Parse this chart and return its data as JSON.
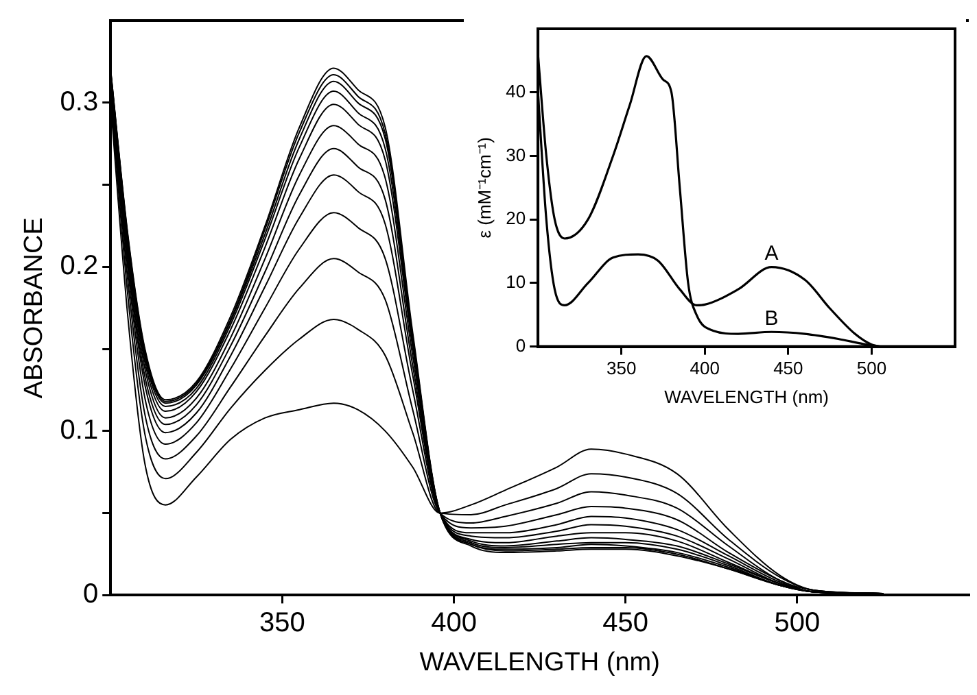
{
  "chart_data": [
    {
      "type": "line",
      "xlabel": "WAVELENGTH (nm)",
      "ylabel": "ABSORBANCE",
      "xlim": [
        300,
        550
      ],
      "xticks": [
        350,
        400,
        450,
        500
      ],
      "ylim": [
        0,
        0.35
      ],
      "yticks": [
        0,
        {
          "value": 0.05,
          "label": null
        },
        0.1,
        {
          "value": 0.15,
          "label": null
        },
        0.2,
        {
          "value": 0.25,
          "label": null
        },
        0.3
      ],
      "x": [
        300,
        305,
        310,
        316,
        325,
        335,
        345,
        355,
        365,
        372,
        380,
        388,
        396,
        405,
        415,
        430,
        440,
        450,
        465,
        480,
        495,
        505,
        525
      ],
      "series": [
        {
          "color": "#000000",
          "values": [
            0.3,
            0.17,
            0.08,
            0.055,
            0.072,
            0.095,
            0.108,
            0.113,
            0.117,
            0.113,
            0.1,
            0.078,
            0.05,
            0.055,
            0.064,
            0.078,
            0.089,
            0.086,
            0.074,
            0.04,
            0.012,
            0.003,
            0.001
          ]
        },
        {
          "color": "#000000",
          "values": [
            0.305,
            0.183,
            0.098,
            0.071,
            0.087,
            0.114,
            0.137,
            0.156,
            0.168,
            0.162,
            0.146,
            0.099,
            0.05,
            0.049,
            0.055,
            0.065,
            0.074,
            0.072,
            0.062,
            0.034,
            0.011,
            0.003,
            0.001
          ]
        },
        {
          "color": "#000000",
          "values": [
            0.309,
            0.192,
            0.11,
            0.083,
            0.097,
            0.127,
            0.158,
            0.187,
            0.205,
            0.197,
            0.18,
            0.113,
            0.05,
            0.044,
            0.048,
            0.056,
            0.063,
            0.061,
            0.053,
            0.03,
            0.009,
            0.003,
            0.001
          ]
        },
        {
          "color": "#000000",
          "values": [
            0.311,
            0.199,
            0.12,
            0.092,
            0.105,
            0.138,
            0.175,
            0.211,
            0.233,
            0.224,
            0.205,
            0.125,
            0.05,
            0.041,
            0.042,
            0.049,
            0.054,
            0.053,
            0.046,
            0.026,
            0.009,
            0.002,
            0.001
          ]
        },
        {
          "color": "#000000",
          "values": [
            0.314,
            0.204,
            0.128,
            0.099,
            0.111,
            0.146,
            0.188,
            0.23,
            0.256,
            0.246,
            0.226,
            0.134,
            0.05,
            0.038,
            0.038,
            0.043,
            0.048,
            0.047,
            0.04,
            0.024,
            0.008,
            0.002,
            0.001
          ]
        },
        {
          "color": "#000000",
          "values": [
            0.315,
            0.208,
            0.133,
            0.104,
            0.116,
            0.152,
            0.197,
            0.244,
            0.272,
            0.261,
            0.241,
            0.14,
            0.05,
            0.036,
            0.035,
            0.039,
            0.043,
            0.042,
            0.036,
            0.022,
            0.007,
            0.002,
            0.001
          ]
        },
        {
          "color": "#000000",
          "values": [
            0.317,
            0.212,
            0.138,
            0.108,
            0.12,
            0.157,
            0.205,
            0.256,
            0.286,
            0.275,
            0.254,
            0.146,
            0.05,
            0.034,
            0.032,
            0.036,
            0.038,
            0.038,
            0.033,
            0.02,
            0.007,
            0.002,
            0.001
          ]
        },
        {
          "color": "#000000",
          "values": [
            0.318,
            0.215,
            0.142,
            0.112,
            0.124,
            0.162,
            0.212,
            0.266,
            0.299,
            0.287,
            0.265,
            0.151,
            0.05,
            0.033,
            0.03,
            0.033,
            0.035,
            0.034,
            0.03,
            0.019,
            0.007,
            0.002,
            0.001
          ]
        },
        {
          "color": "#000000",
          "values": [
            0.319,
            0.217,
            0.145,
            0.115,
            0.126,
            0.165,
            0.217,
            0.273,
            0.307,
            0.294,
            0.272,
            0.154,
            0.05,
            0.032,
            0.029,
            0.031,
            0.032,
            0.032,
            0.028,
            0.018,
            0.006,
            0.002,
            0.001
          ]
        },
        {
          "color": "#000000",
          "values": [
            0.319,
            0.218,
            0.147,
            0.117,
            0.128,
            0.167,
            0.22,
            0.278,
            0.313,
            0.3,
            0.278,
            0.157,
            0.05,
            0.031,
            0.028,
            0.029,
            0.031,
            0.03,
            0.026,
            0.017,
            0.006,
            0.002,
            0.001
          ]
        },
        {
          "color": "#000000",
          "values": [
            0.32,
            0.219,
            0.149,
            0.118,
            0.129,
            0.168,
            0.223,
            0.282,
            0.317,
            0.304,
            0.281,
            0.158,
            0.05,
            0.031,
            0.027,
            0.028,
            0.029,
            0.029,
            0.025,
            0.016,
            0.006,
            0.002,
            0.001
          ]
        },
        {
          "color": "#000000",
          "values": [
            0.32,
            0.22,
            0.15,
            0.119,
            0.13,
            0.17,
            0.225,
            0.285,
            0.321,
            0.308,
            0.285,
            0.16,
            0.05,
            0.03,
            0.026,
            0.027,
            0.028,
            0.028,
            0.024,
            0.016,
            0.006,
            0.002,
            0.001
          ]
        }
      ]
    },
    {
      "type": "line",
      "xlabel": "WAVELENGTH (nm)",
      "ylabel": "ε (mM⁻¹cm⁻¹)",
      "xlim": [
        300,
        550
      ],
      "xticks": [
        350,
        400,
        450,
        500
      ],
      "ylim": [
        0,
        50
      ],
      "yticks": [
        0,
        10,
        20,
        30,
        40
      ],
      "series": [
        {
          "name": "A",
          "color": "#000000",
          "x": [
            300,
            305,
            310,
            316,
            330,
            345,
            360,
            372,
            385,
            395,
            400,
            420,
            440,
            460,
            475,
            490,
            500,
            505
          ],
          "values": [
            40,
            20,
            9,
            6.5,
            10,
            14,
            14.5,
            13.5,
            9,
            6.5,
            6.6,
            9,
            12.5,
            10.5,
            6,
            2,
            0.3,
            0
          ]
        },
        {
          "name": "B",
          "color": "#000000",
          "x": [
            300,
            305,
            310,
            316,
            330,
            345,
            355,
            365,
            375,
            380,
            385,
            390,
            395,
            405,
            420,
            440,
            460,
            480,
            495,
            505
          ],
          "values": [
            46,
            30,
            20,
            17,
            20,
            30,
            38,
            45.7,
            42,
            40,
            25,
            10,
            5,
            2.5,
            2,
            2.3,
            2,
            1.2,
            0.4,
            0
          ]
        }
      ]
    }
  ]
}
